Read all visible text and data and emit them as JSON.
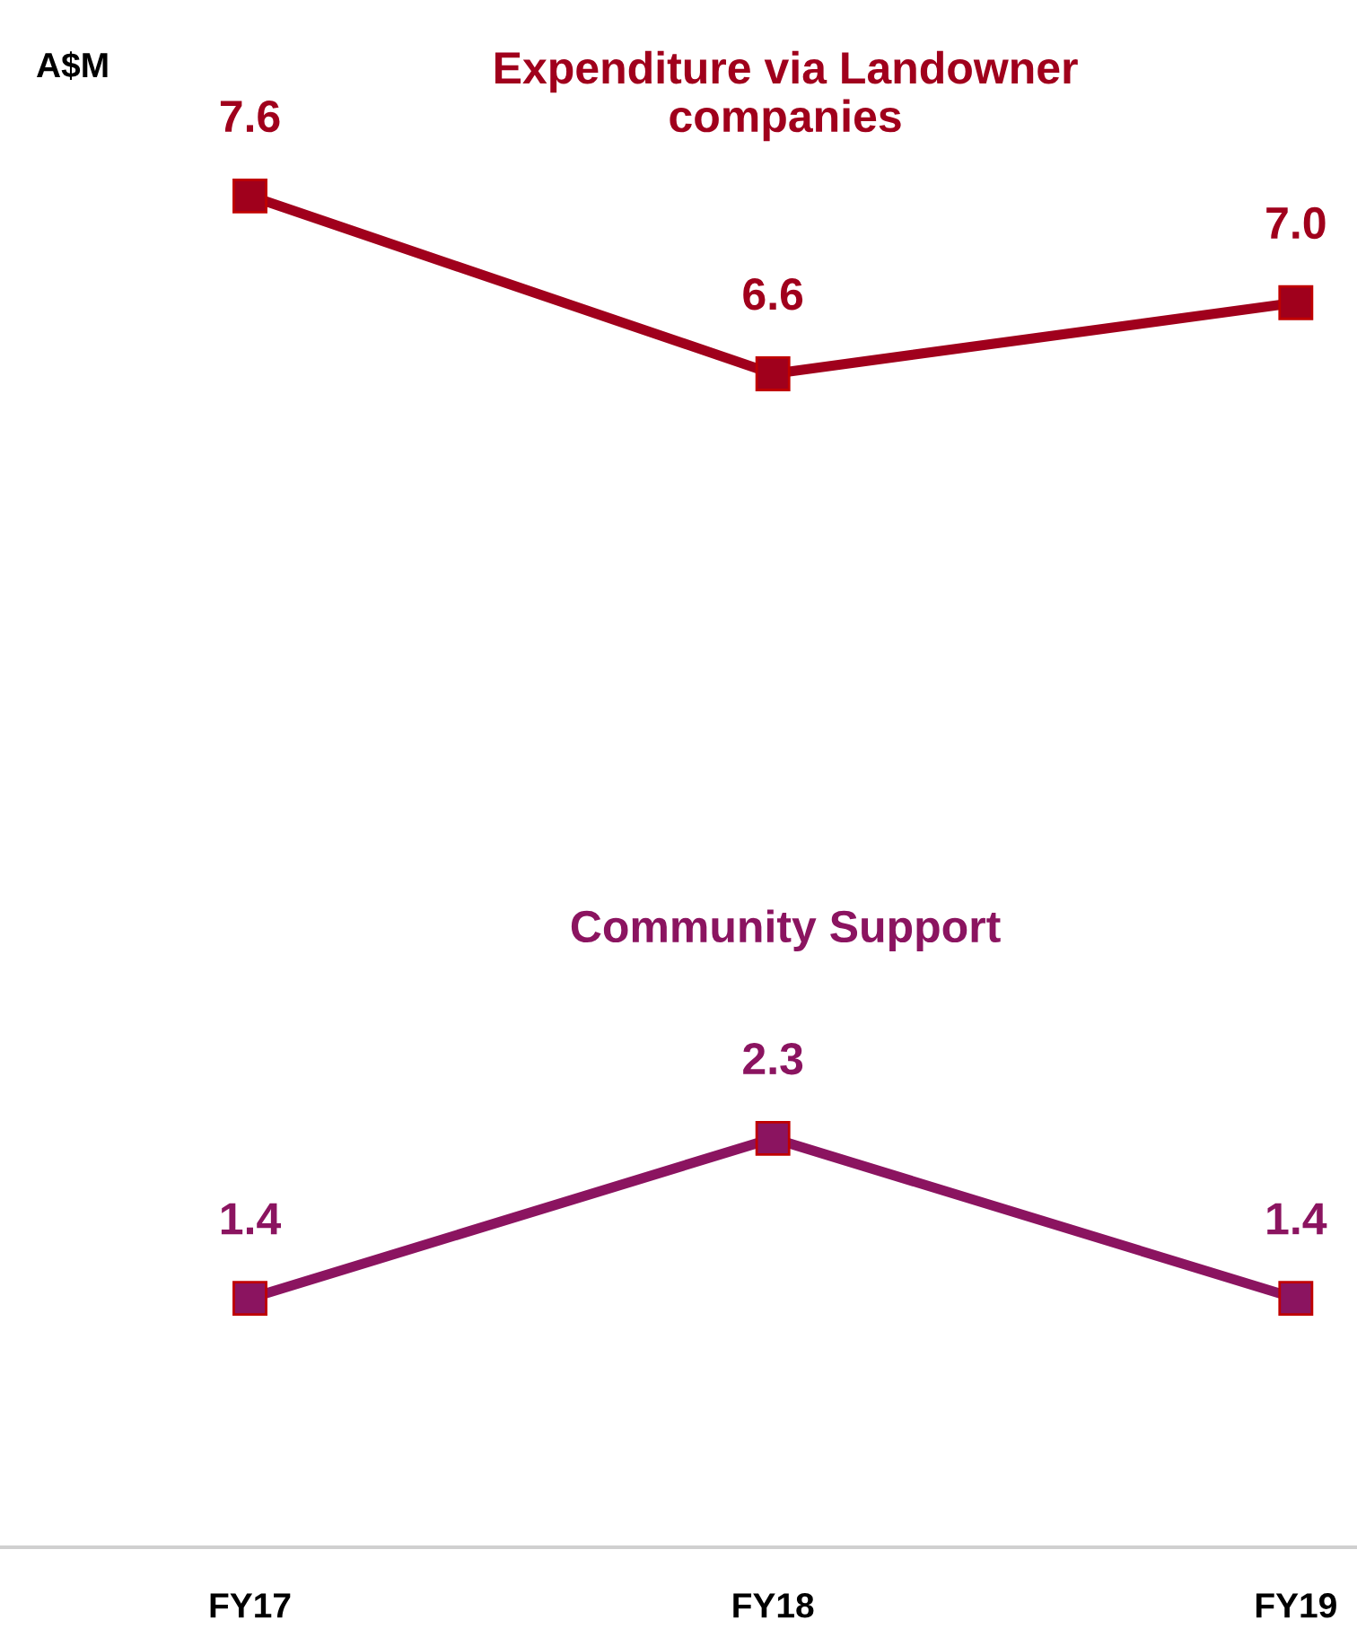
{
  "chart_data": {
    "type": "line",
    "ylabel": "A$M",
    "categories": [
      "FY17",
      "FY18",
      "FY19"
    ],
    "series": [
      {
        "name": "Expenditure via Landowner\ncompanies",
        "color": "#a0001c",
        "values": [
          7.6,
          6.6,
          7.0
        ],
        "value_labels": [
          "7.6",
          "6.6",
          "7.0"
        ]
      },
      {
        "name": "Community Support",
        "color": "#8b1460",
        "values": [
          1.4,
          2.3,
          1.4
        ],
        "value_labels": [
          "1.4",
          "2.3",
          "1.4"
        ]
      }
    ],
    "marker": "square",
    "line_style": "solid",
    "grid": false,
    "legend": false
  }
}
